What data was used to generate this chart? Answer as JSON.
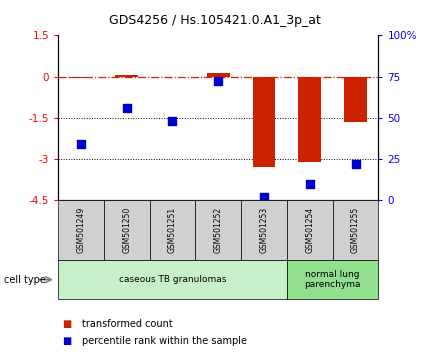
{
  "title": "GDS4256 / Hs.105421.0.A1_3p_at",
  "samples": [
    "GSM501249",
    "GSM501250",
    "GSM501251",
    "GSM501252",
    "GSM501253",
    "GSM501254",
    "GSM501255"
  ],
  "red_values": [
    -0.05,
    0.05,
    0.0,
    0.12,
    -3.3,
    -3.1,
    -1.65
  ],
  "blue_values": [
    34,
    56,
    48,
    72,
    2,
    10,
    22
  ],
  "ylim_left": [
    -4.5,
    1.5
  ],
  "ylim_right": [
    0,
    100
  ],
  "yticks_left": [
    1.5,
    0,
    -1.5,
    -3,
    -4.5
  ],
  "yticks_right": [
    0,
    25,
    50,
    75,
    100
  ],
  "dotted_lines": [
    -1.5,
    -3
  ],
  "cell_types": [
    {
      "label": "caseous TB granulomas",
      "start": 0,
      "end": 4,
      "color": "#c8f0c8"
    },
    {
      "label": "normal lung\nparenchyma",
      "start": 5,
      "end": 6,
      "color": "#90e090"
    }
  ],
  "bar_color": "#cc2200",
  "dot_color": "#0000cc",
  "bar_width": 0.5,
  "dot_size": 40,
  "label_box_color": "#d0d0d0",
  "title_fontsize": 9,
  "tick_fontsize": 7.5,
  "sample_fontsize": 5.5,
  "cell_fontsize": 6.5,
  "legend_fontsize": 7.0
}
